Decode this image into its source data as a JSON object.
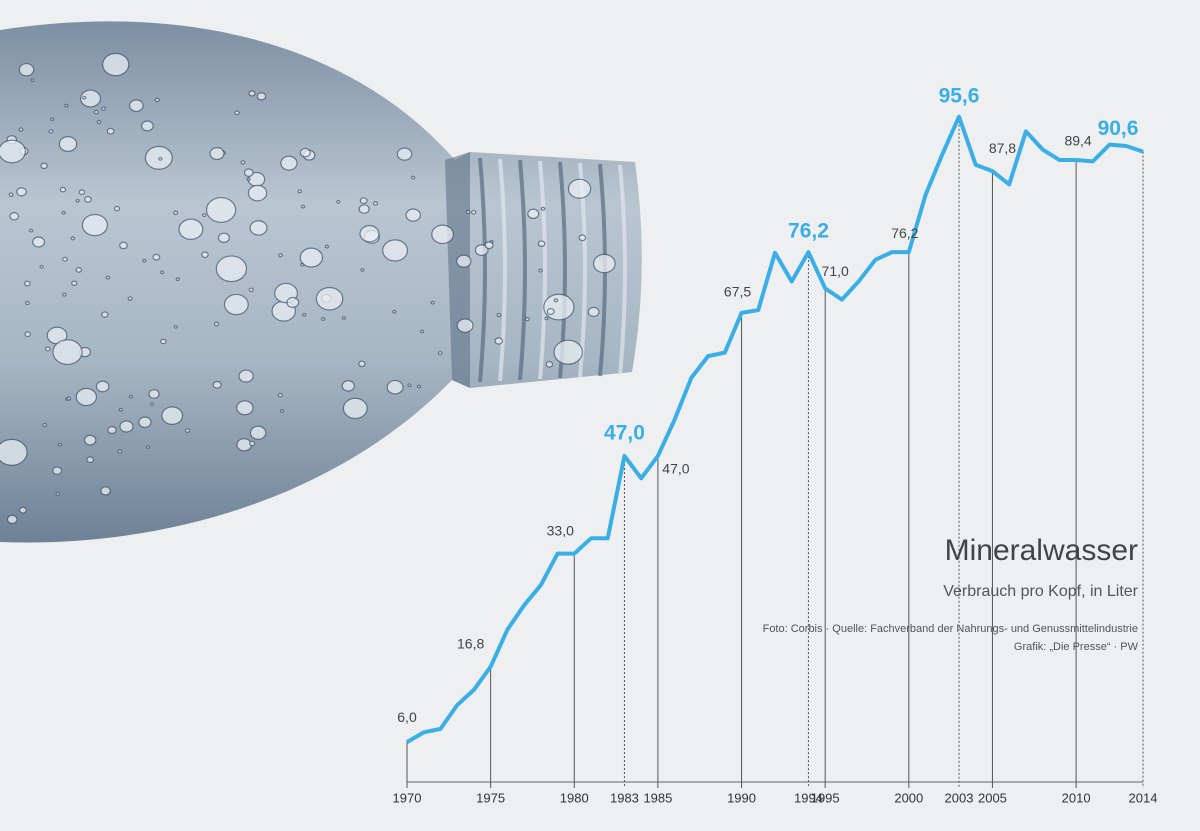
{
  "chart_data": {
    "type": "line",
    "title": "Mineralwasser",
    "subtitle": "Verbrauch pro Kopf, in Liter",
    "source": "Foto: Corbis · Quelle: Fachverband der Nahrungs- und Genussmittelindustrie",
    "credit": "Grafik: „Die Presse“ · PW",
    "x": [
      1970,
      1971,
      1972,
      1973,
      1974,
      1975,
      1976,
      1977,
      1978,
      1979,
      1980,
      1981,
      1982,
      1983,
      1984,
      1985,
      1986,
      1987,
      1988,
      1989,
      1990,
      1991,
      1992,
      1993,
      1994,
      1995,
      1996,
      1997,
      1998,
      1999,
      2000,
      2001,
      2002,
      2003,
      2004,
      2005,
      2006,
      2007,
      2008,
      2009,
      2010,
      2011,
      2012,
      2013,
      2014
    ],
    "values": [
      6.0,
      7.4,
      7.9,
      11.3,
      13.5,
      16.8,
      22.1,
      25.6,
      28.5,
      33.0,
      33.0,
      35.2,
      35.2,
      47.0,
      43.8,
      47.0,
      52.2,
      58.2,
      61.3,
      61.8,
      67.5,
      67.9,
      76.1,
      72.0,
      76.2,
      71.0,
      69.4,
      72.0,
      75.1,
      76.2,
      76.2,
      84.4,
      90.2,
      95.6,
      88.7,
      87.8,
      85.9,
      93.5,
      90.9,
      89.4,
      89.4,
      89.2,
      91.6,
      91.4,
      90.6
    ],
    "value_labels": [
      "6,0",
      null,
      null,
      null,
      null,
      "16,8",
      null,
      null,
      null,
      null,
      "33,0",
      null,
      null,
      "47,0",
      null,
      "47,0",
      null,
      null,
      null,
      null,
      "67,5",
      null,
      null,
      null,
      "76,2",
      "71,0",
      null,
      null,
      null,
      null,
      "76,2",
      null,
      null,
      "95,6",
      null,
      "87,8",
      null,
      null,
      null,
      null,
      "89,4",
      null,
      null,
      null,
      "90,6"
    ],
    "highlight": [
      1983,
      1994,
      2003,
      2014
    ],
    "color": "#3aaee6",
    "xlim": [
      1970,
      2014
    ],
    "ylim": [
      0,
      100
    ],
    "xticks": [
      1970,
      1975,
      1980,
      1983,
      1985,
      1990,
      1994,
      1995,
      2000,
      2003,
      2005,
      2010,
      2014
    ]
  }
}
